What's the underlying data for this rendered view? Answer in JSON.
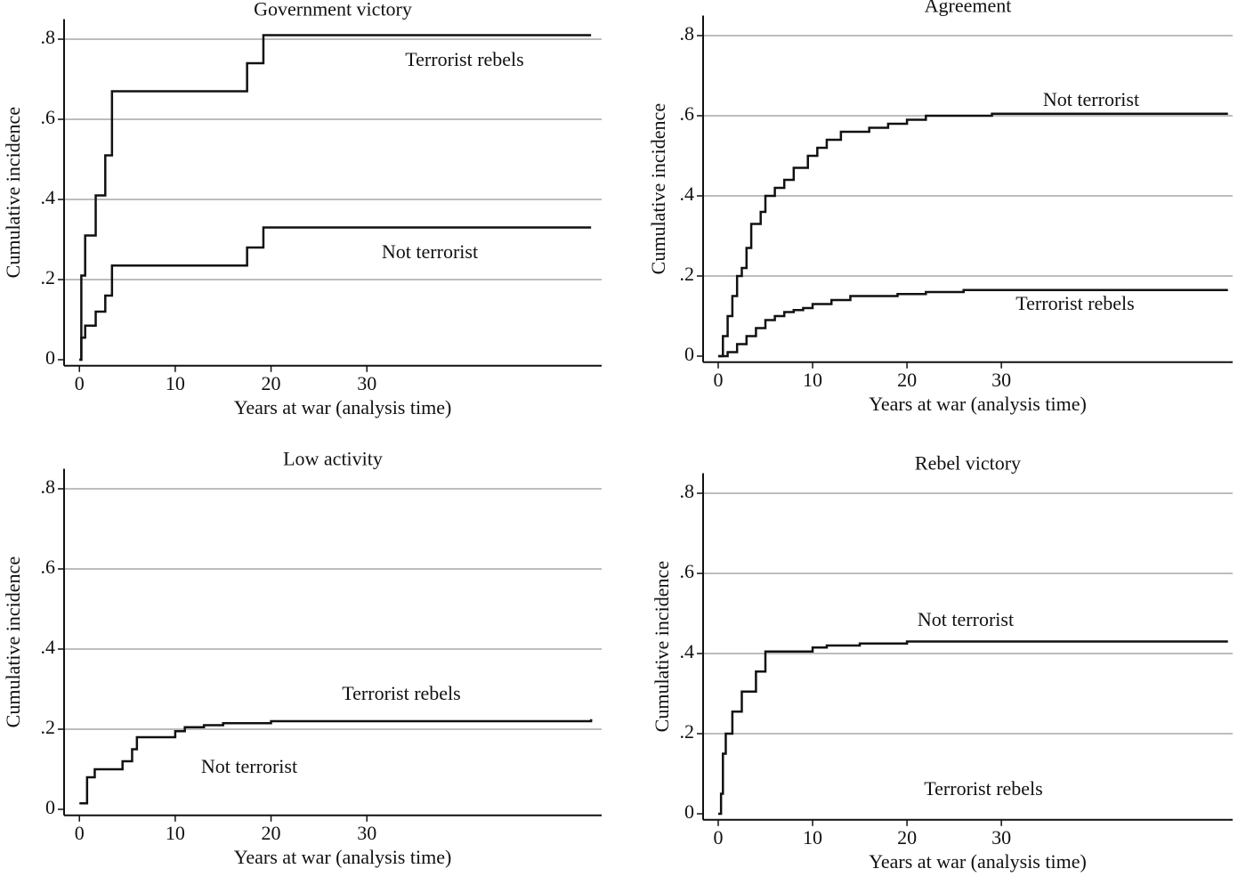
{
  "chart_data": [
    {
      "type": "step",
      "title": "Government victory",
      "x_label": "Years at war (analysis time)",
      "y_label": "Cumulative incidence",
      "xlim": [
        -1.6,
        54.5
      ],
      "ylim": [
        -0.015,
        0.85
      ],
      "xticks": [
        0,
        10,
        20,
        30
      ],
      "yticks": [
        0,
        {
          "value": 0.2,
          "label": ".2"
        },
        {
          "value": 0.4,
          "label": ".4"
        },
        {
          "value": 0.6,
          "label": ".6"
        },
        {
          "value": 0.8,
          "label": ".8"
        }
      ],
      "grid": true,
      "series": [
        {
          "name": "Terrorist rebels",
          "color": "#111111",
          "x": [
            0,
            0.2,
            0.6,
            1.7,
            2.7,
            3.4,
            17.5,
            19.2,
            53.4
          ],
          "values": [
            0,
            0.21,
            0.31,
            0.41,
            0.51,
            0.67,
            0.74,
            0.81,
            0.81
          ]
        },
        {
          "name": "Not terrorist",
          "color": "#111111",
          "x": [
            0,
            0.2,
            0.6,
            1.7,
            2.7,
            3.4,
            17.5,
            19.2,
            53.4
          ],
          "values": [
            0,
            0.055,
            0.085,
            0.12,
            0.16,
            0.235,
            0.28,
            0.33,
            0.33
          ]
        }
      ]
    },
    {
      "type": "step",
      "title": "Agreement",
      "x_label": "Years at war (analysis time)",
      "y_label": "Cumulative incidence",
      "xlim": [
        -1.6,
        54.5
      ],
      "ylim": [
        -0.015,
        0.85
      ],
      "xticks": [
        0,
        10,
        20,
        30
      ],
      "yticks": [
        0,
        {
          "value": 0.2,
          "label": ".2"
        },
        {
          "value": 0.4,
          "label": ".4"
        },
        {
          "value": 0.6,
          "label": ".6"
        },
        {
          "value": 0.8,
          "label": ".8"
        }
      ],
      "grid": true,
      "series": [
        {
          "name": "Not terrorist",
          "color": "#111111",
          "x": [
            0,
            0.5,
            1,
            1.5,
            2,
            2.5,
            3,
            3.5,
            4.5,
            5,
            6,
            7,
            8,
            9.5,
            10.5,
            11.5,
            13,
            16,
            18,
            20,
            22,
            29,
            54
          ],
          "values": [
            0,
            0.05,
            0.1,
            0.15,
            0.2,
            0.22,
            0.27,
            0.33,
            0.36,
            0.4,
            0.42,
            0.44,
            0.47,
            0.5,
            0.52,
            0.54,
            0.56,
            0.57,
            0.58,
            0.59,
            0.6,
            0.605,
            0.605
          ]
        },
        {
          "name": "Terrorist rebels",
          "color": "#111111",
          "x": [
            0,
            1,
            2,
            3,
            4,
            5,
            6,
            7,
            8,
            9,
            10,
            12,
            14,
            19,
            22,
            26,
            54
          ],
          "values": [
            0,
            0.01,
            0.03,
            0.05,
            0.07,
            0.09,
            0.1,
            0.11,
            0.115,
            0.12,
            0.13,
            0.14,
            0.15,
            0.155,
            0.16,
            0.165,
            0.165
          ]
        }
      ]
    },
    {
      "type": "step",
      "title": "Low activity",
      "x_label": "Years at war (analysis time)",
      "y_label": "Cumulative incidence",
      "xlim": [
        -1.6,
        54.5
      ],
      "ylim": [
        -0.015,
        0.85
      ],
      "xticks": [
        0,
        10,
        20,
        30
      ],
      "yticks": [
        0,
        {
          "value": 0.2,
          "label": ".2"
        },
        {
          "value": 0.4,
          "label": ".4"
        },
        {
          "value": 0.6,
          "label": ".6"
        },
        {
          "value": 0.8,
          "label": ".8"
        }
      ],
      "grid": true,
      "series": [
        {
          "name": "Terrorist rebels",
          "color": "#111111",
          "x": [
            0,
            0.8,
            1.6,
            4.5,
            5.5,
            6,
            10,
            11,
            13,
            15,
            20,
            53.4
          ],
          "values": [
            0.015,
            0.08,
            0.1,
            0.12,
            0.15,
            0.18,
            0.195,
            0.205,
            0.21,
            0.215,
            0.22,
            0.225
          ]
        }
      ],
      "annotations": [
        "Not terrorist"
      ]
    },
    {
      "type": "step",
      "title": "Rebel victory",
      "x_label": "Years at war (analysis time)",
      "y_label": "Cumulative incidence",
      "xlim": [
        -1.6,
        54.5
      ],
      "ylim": [
        -0.015,
        0.85
      ],
      "xticks": [
        0,
        10,
        20,
        30
      ],
      "yticks": [
        0,
        {
          "value": 0.2,
          "label": ".2"
        },
        {
          "value": 0.4,
          "label": ".4"
        },
        {
          "value": 0.6,
          "label": ".6"
        },
        {
          "value": 0.8,
          "label": ".8"
        }
      ],
      "grid": true,
      "series": [
        {
          "name": "Not terrorist",
          "color": "#111111",
          "x": [
            0,
            0.3,
            0.5,
            0.8,
            1.5,
            2.5,
            4,
            5,
            10,
            11.5,
            15,
            20,
            54
          ],
          "values": [
            0,
            0.05,
            0.15,
            0.2,
            0.255,
            0.305,
            0.355,
            0.405,
            0.415,
            0.42,
            0.425,
            0.43,
            0.43
          ]
        }
      ],
      "annotations": [
        "Terrorist rebels"
      ]
    }
  ]
}
